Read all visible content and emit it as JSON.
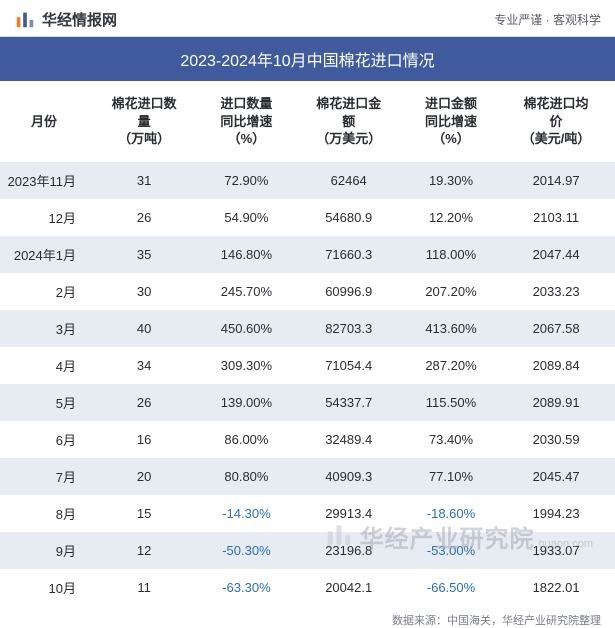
{
  "header": {
    "logo_text": "华经情报网",
    "right_text": "专业严谨 · 客观科学"
  },
  "title": "2023-2024年10月中国棉花进口情况",
  "table": {
    "columns": [
      "月份",
      "棉花进口数\n量\n（万吨）",
      "进口数量\n同比增速\n（%）",
      "棉花进口金\n额\n（万美元）",
      "进口金额\n同比增速\n（%）",
      "棉花进口均\n价\n（美元/吨）"
    ],
    "rows": [
      {
        "month": "2023年11月",
        "qty": "31",
        "qty_yoy": "72.90%",
        "val": "62464",
        "val_yoy": "19.30%",
        "price": "2014.97",
        "neg_qty": false,
        "neg_val": false
      },
      {
        "month": "12月",
        "qty": "26",
        "qty_yoy": "54.90%",
        "val": "54680.9",
        "val_yoy": "12.20%",
        "price": "2103.11",
        "neg_qty": false,
        "neg_val": false
      },
      {
        "month": "2024年1月",
        "qty": "35",
        "qty_yoy": "146.80%",
        "val": "71660.3",
        "val_yoy": "118.00%",
        "price": "2047.44",
        "neg_qty": false,
        "neg_val": false
      },
      {
        "month": "2月",
        "qty": "30",
        "qty_yoy": "245.70%",
        "val": "60996.9",
        "val_yoy": "207.20%",
        "price": "2033.23",
        "neg_qty": false,
        "neg_val": false
      },
      {
        "month": "3月",
        "qty": "40",
        "qty_yoy": "450.60%",
        "val": "82703.3",
        "val_yoy": "413.60%",
        "price": "2067.58",
        "neg_qty": false,
        "neg_val": false
      },
      {
        "month": "4月",
        "qty": "34",
        "qty_yoy": "309.30%",
        "val": "71054.4",
        "val_yoy": "287.20%",
        "price": "2089.84",
        "neg_qty": false,
        "neg_val": false
      },
      {
        "month": "5月",
        "qty": "26",
        "qty_yoy": "139.00%",
        "val": "54337.7",
        "val_yoy": "115.50%",
        "price": "2089.91",
        "neg_qty": false,
        "neg_val": false
      },
      {
        "month": "6月",
        "qty": "16",
        "qty_yoy": "86.00%",
        "val": "32489.4",
        "val_yoy": "73.40%",
        "price": "2030.59",
        "neg_qty": false,
        "neg_val": false
      },
      {
        "month": "7月",
        "qty": "20",
        "qty_yoy": "80.80%",
        "val": "40909.3",
        "val_yoy": "77.10%",
        "price": "2045.47",
        "neg_qty": false,
        "neg_val": false
      },
      {
        "month": "8月",
        "qty": "15",
        "qty_yoy": "-14.30%",
        "val": "29913.4",
        "val_yoy": "-18.60%",
        "price": "1994.23",
        "neg_qty": true,
        "neg_val": true
      },
      {
        "month": "9月",
        "qty": "12",
        "qty_yoy": "-50.30%",
        "val": "23196.8",
        "val_yoy": "-53.00%",
        "price": "1933.07",
        "neg_qty": true,
        "neg_val": true
      },
      {
        "month": "10月",
        "qty": "11",
        "qty_yoy": "-63.30%",
        "val": "20042.1",
        "val_yoy": "-66.50%",
        "price": "1822.01",
        "neg_qty": true,
        "neg_val": true
      }
    ],
    "stripe_color": "#e7ebf2",
    "neg_color": "#2b6fb5",
    "text_color": "#2a2c33",
    "title_bg": "#3f5b9e",
    "title_fg": "#ffffff"
  },
  "footer": "数据来源：中国海关，华经产业研究院整理",
  "watermark": {
    "main": "华经产业研究院",
    "sub": "huaon.com"
  },
  "logo_colors": {
    "bar1": "#f27b2f",
    "bar2": "#3f5b9e",
    "bar3": "#7d8aa8"
  }
}
